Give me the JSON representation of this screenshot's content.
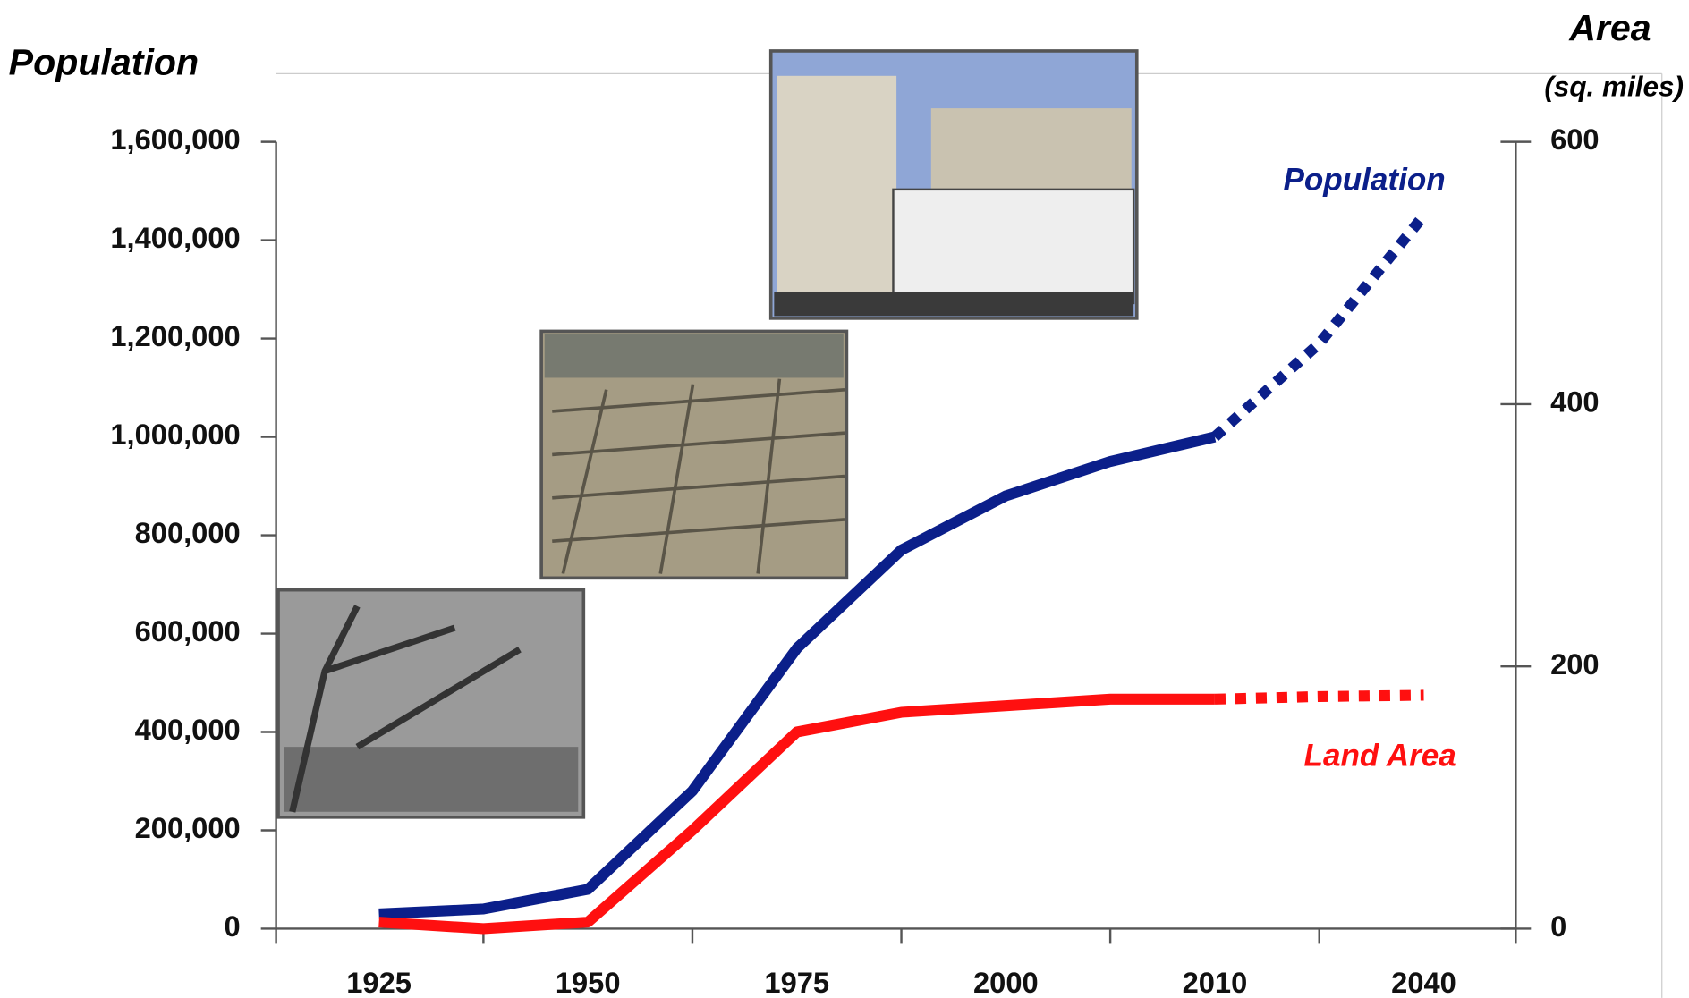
{
  "chart_data": {
    "type": "line",
    "y_title": "Population",
    "y2_title": "Area",
    "y2_subtitle": "(sq. miles)",
    "categories": [
      "1925",
      null,
      "1950",
      null,
      "1975",
      null,
      "2000",
      null,
      "2010",
      null,
      "2040"
    ],
    "series": [
      {
        "name": "Population",
        "color": "#0b1f8a",
        "axis": "y",
        "values": [
          30000,
          40000,
          80000,
          280000,
          570000,
          770000,
          880000,
          950000,
          1000000,
          null,
          null
        ],
        "projection_values": [
          null,
          null,
          null,
          null,
          null,
          null,
          null,
          null,
          1000000,
          1190000,
          1450000
        ]
      },
      {
        "name": "Land Area",
        "color": "#ff1010",
        "axis": "y2",
        "values": [
          5,
          0,
          5,
          75,
          150,
          165,
          170,
          175,
          175,
          null,
          null
        ],
        "projection_values": [
          null,
          null,
          null,
          null,
          null,
          null,
          null,
          null,
          175,
          177,
          178
        ]
      }
    ],
    "ylim": [
      0,
      1600000
    ],
    "yticks": [
      0,
      {
        "value": 200000,
        "label": "200,000"
      },
      {
        "value": 400000,
        "label": "400,000"
      },
      {
        "value": 600000,
        "label": "600,000"
      },
      {
        "value": 800000,
        "label": "800,000"
      },
      {
        "value": 1000000,
        "label": "1,000,000"
      },
      {
        "value": 1200000,
        "label": "1,200,000"
      },
      {
        "value": 1400000,
        "label": "1,400,000"
      },
      {
        "value": 1600000,
        "label": "1,600,000"
      }
    ],
    "y2lim": [
      0,
      600
    ],
    "y2ticks": [
      0,
      200,
      400,
      600
    ]
  }
}
